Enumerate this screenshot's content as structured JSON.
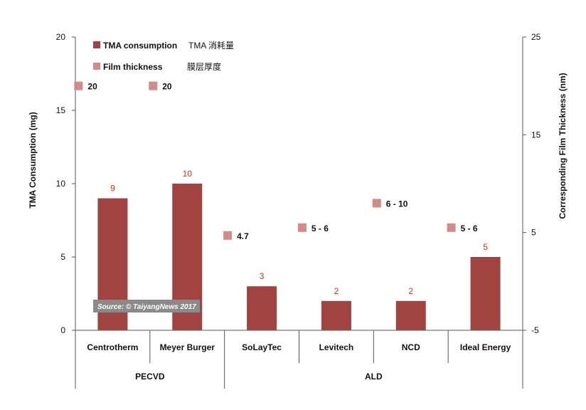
{
  "chart_data": {
    "type": "bar",
    "categories": [
      "Centrotherm",
      "Meyer Burger",
      "SoLayTec",
      "Levitech",
      "NCD",
      "Ideal Energy"
    ],
    "groups": [
      {
        "label": "PECVD",
        "categories": [
          "Centrotherm",
          "Meyer Burger"
        ]
      },
      {
        "label": "ALD",
        "categories": [
          "SoLayTec",
          "Levitech",
          "NCD",
          "Ideal Energy"
        ]
      }
    ],
    "series": [
      {
        "name": "TMA consumption",
        "axis": "left",
        "kind": "bar",
        "color": "#A04341",
        "values": [
          9,
          10,
          3,
          2,
          2,
          5
        ],
        "labels": [
          "9",
          "10",
          "3",
          "2",
          "2",
          "5"
        ]
      },
      {
        "name": "Film thickness",
        "axis": "right",
        "kind": "marker",
        "color": "#D58A8A",
        "values": [
          20,
          20,
          4.7,
          5.5,
          8,
          5.5
        ],
        "labels": [
          "20",
          "20",
          "4.7",
          "5 - 6",
          "6 - 10",
          "5 - 6"
        ]
      }
    ],
    "legend_cn": {
      "bar": "TMA 消耗量",
      "marker": "膜层厚度"
    },
    "ylabel": "TMA Consumption (mg)",
    "y2label": "Corresponding Film Thickness (nm)",
    "ylim": [
      0,
      20
    ],
    "yticks": [
      0,
      5,
      10,
      15,
      20
    ],
    "y2lim": [
      -5,
      25
    ],
    "y2ticks": [
      -5,
      5,
      15,
      25
    ],
    "grid": false,
    "legend_position": "top-left",
    "label_color": "#E0301E",
    "source_note": "Source: © TaiyangNews 2017"
  }
}
